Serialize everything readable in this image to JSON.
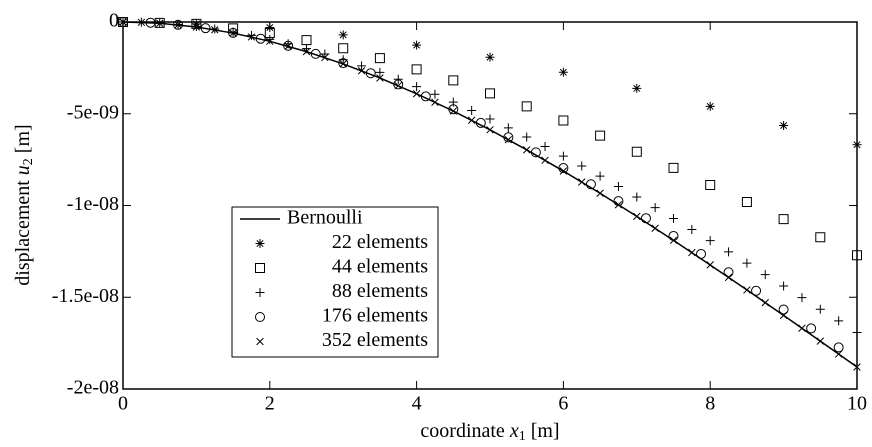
{
  "chart_data": {
    "type": "scatter",
    "xlabel": [
      "coordinate ",
      "x",
      "1",
      " [m]"
    ],
    "ylabel": [
      "displacement ",
      "u",
      "2",
      " [m]"
    ],
    "xlim": [
      0,
      10
    ],
    "ylim": [
      -2e-08,
      0
    ],
    "xticks": [
      0,
      2,
      4,
      6,
      8,
      10
    ],
    "yticks": [
      {
        "value": 0,
        "label": "0"
      },
      {
        "value": -5e-09,
        "label": "-5e-09"
      },
      {
        "value": -1e-08,
        "label": "-1e-08"
      },
      {
        "value": -1.5e-08,
        "label": "-1.5e-08"
      },
      {
        "value": -2e-08,
        "label": "-2e-08"
      }
    ],
    "series": [
      {
        "name": "Bernoulli",
        "marker": "line",
        "color": "#000000",
        "x": [
          0,
          0.5,
          1,
          1.5,
          2,
          2.5,
          3,
          3.5,
          4,
          4.5,
          5,
          5.5,
          6,
          6.5,
          7,
          7.5,
          8,
          8.5,
          9,
          9.5,
          10
        ],
        "values": [
          0,
          -6.93e-11,
          -2.726e-10,
          -6.03e-10,
          -1.053e-09,
          -1.616e-09,
          -2.284e-09,
          -3.051e-09,
          -3.91e-09,
          -4.854e-09,
          -5.875e-09,
          -6.966e-09,
          -8.122e-09,
          -9.333e-09,
          -1.059e-08,
          -1.19e-08,
          -1.324e-08,
          -1.46e-08,
          -1.599e-08,
          -1.739e-08,
          -1.88e-08
        ]
      },
      {
        "name": "22 elements",
        "marker": "star",
        "color": "#000000",
        "x": [
          0,
          1,
          2,
          3,
          4,
          5,
          6,
          7,
          8,
          9,
          10
        ],
        "values": [
          0,
          -1e-10,
          -3e-10,
          -7e-10,
          -1.26e-09,
          -1.92e-09,
          -2.74e-09,
          -3.62e-09,
          -4.6e-09,
          -5.64e-09,
          -6.69e-09
        ]
      },
      {
        "name": "44 elements",
        "marker": "square",
        "color": "#000000",
        "x": [
          0,
          0.5,
          1,
          1.5,
          2,
          2.5,
          3,
          3.5,
          4,
          4.5,
          5,
          5.5,
          6,
          6.5,
          7,
          7.5,
          8,
          8.5,
          9,
          9.5,
          10
        ],
        "values": [
          0,
          -5e-11,
          -1e-10,
          -3.5e-10,
          -6e-10,
          -9.9e-10,
          -1.43e-09,
          -1.97e-09,
          -2.58e-09,
          -3.18e-09,
          -3.89e-09,
          -4.6e-09,
          -5.37e-09,
          -6.19e-09,
          -7.07e-09,
          -7.95e-09,
          -8.88e-09,
          -9.81e-09,
          -1.074e-08,
          -1.173e-08,
          -1.271e-08
        ]
      },
      {
        "name": "88 elements",
        "marker": "plus",
        "color": "#000000",
        "x": [
          0,
          0.25,
          0.5,
          0.75,
          1,
          1.25,
          1.5,
          1.75,
          2,
          2.25,
          2.5,
          2.75,
          3,
          3.25,
          3.5,
          3.75,
          4,
          4.25,
          4.5,
          4.75,
          5,
          5.25,
          5.5,
          5.75,
          6,
          6.25,
          6.5,
          6.75,
          7,
          7.25,
          7.5,
          7.75,
          8,
          8.25,
          8.5,
          8.75,
          9,
          9.25,
          9.5,
          9.75,
          10
        ],
        "values": [
          0,
          -1.6e-11,
          -6.2e-11,
          -1.39e-10,
          -2.45e-10,
          -3.8e-10,
          -5.42e-10,
          -7.32e-10,
          -9.48e-10,
          -1.188e-09,
          -1.454e-09,
          -1.743e-09,
          -2.056e-09,
          -2.39e-09,
          -2.746e-09,
          -3.123e-09,
          -3.519e-09,
          -3.935e-09,
          -4.369e-09,
          -4.82e-09,
          -5.288e-09,
          -5.771e-09,
          -6.27e-09,
          -6.783e-09,
          -7.309e-09,
          -7.849e-09,
          -8.4e-09,
          -8.962e-09,
          -9.534e-09,
          -1.0116e-08,
          -1.0707e-08,
          -1.1306e-08,
          -1.1912e-08,
          -1.2524e-08,
          -1.3142e-08,
          -1.3764e-08,
          -1.439e-08,
          -1.502e-08,
          -1.5652e-08,
          -1.6286e-08,
          -1.692e-08
        ]
      },
      {
        "name": "176 elements",
        "marker": "circle",
        "color": "#000000",
        "x": [
          0,
          0.375,
          0.75,
          1.125,
          1.5,
          1.875,
          2.25,
          2.625,
          3,
          3.375,
          3.75,
          4.125,
          4.5,
          4.875,
          5.25,
          5.625,
          6,
          6.375,
          6.75,
          7.125,
          7.5,
          7.875,
          8.25,
          8.625,
          9,
          9.375,
          9.75
        ],
        "values": [
          0,
          -3.84e-11,
          -1.515e-10,
          -3.366e-10,
          -5.907e-10,
          -9.109e-10,
          -1.2941e-09,
          -1.7377e-09,
          -2.2385e-09,
          -2.7938e-09,
          -3.4005e-09,
          -4.0558e-09,
          -4.7568e-09,
          -5.5006e-09,
          -6.2841e-09,
          -7.1047e-09,
          -7.9592e-09,
          -8.8447e-09,
          -9.7586e-09,
          -1.06975e-08,
          -1.16589e-08,
          -1.26398e-08,
          -1.36371e-08,
          -1.4648e-08,
          -1.56696e-08,
          -1.6699e-08,
          -1.77333e-08
        ]
      },
      {
        "name": "352 elements",
        "marker": "cross",
        "color": "#000000",
        "x": [
          0,
          0.25,
          0.5,
          0.75,
          1,
          1.25,
          1.5,
          1.75,
          2,
          2.25,
          2.5,
          2.75,
          3,
          3.25,
          3.5,
          3.75,
          4,
          4.25,
          4.5,
          4.75,
          5,
          5.25,
          5.5,
          5.75,
          6,
          6.25,
          6.5,
          6.75,
          7,
          7.25,
          7.5,
          7.75,
          8,
          8.25,
          8.5,
          8.75,
          9,
          9.25,
          9.5,
          9.75,
          10
        ],
        "values": [
          0,
          -1.75e-11,
          -6.93e-11,
          -1.546e-10,
          -2.726e-10,
          -4.222e-10,
          -6.028e-10,
          -8.133e-10,
          -1.0528e-09,
          -1.3205e-09,
          -1.6156e-09,
          -1.9372e-09,
          -2.2842e-09,
          -2.656e-09,
          -3.0515e-09,
          -3.4699e-09,
          -3.9104e-09,
          -4.372e-09,
          -4.8539e-09,
          -5.3552e-09,
          -5.875e-09,
          -6.4124e-09,
          -6.9666e-09,
          -7.5366e-09,
          -8.1216e-09,
          -8.7207e-09,
          -9.333e-09,
          -9.9577e-09,
          -1.05938e-08,
          -1.12405e-08,
          -1.18969e-08,
          -1.25621e-08,
          -1.32352e-08,
          -1.39154e-08,
          -1.46017e-08,
          -1.52933e-08,
          -1.59894e-08,
          -1.66889e-08,
          -1.73912e-08,
          -1.80952e-08,
          -1.88e-08
        ]
      }
    ]
  }
}
